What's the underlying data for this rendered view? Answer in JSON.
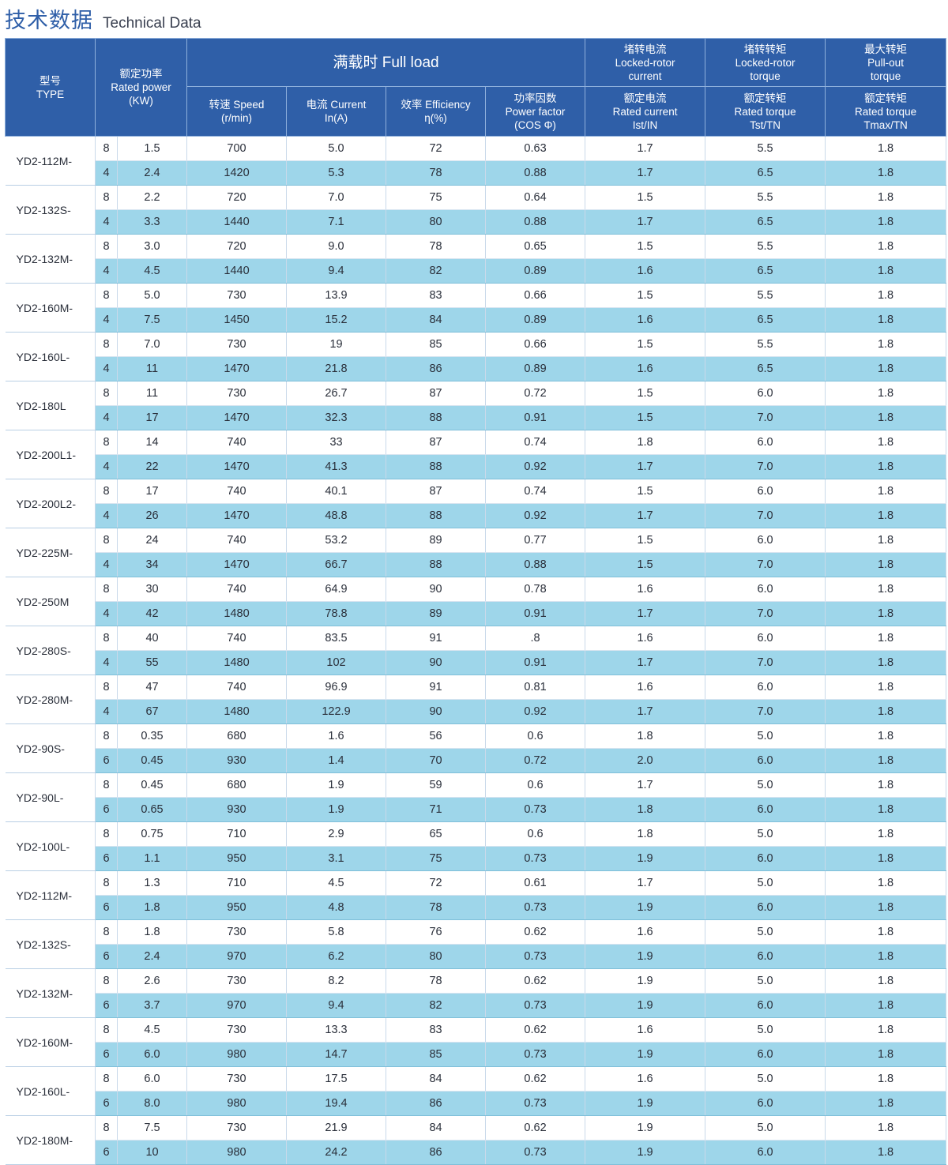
{
  "title": {
    "zh": "技术数据",
    "en": "Technical Data"
  },
  "header": {
    "type": [
      "型号",
      "TYPE"
    ],
    "rated_power": [
      "额定功率",
      "Rated power",
      "(KW)"
    ],
    "full_load": "满载时 Full load",
    "speed": [
      "转速 Speed",
      "(r/min)"
    ],
    "current": [
      "电流 Current",
      "In(A)"
    ],
    "efficiency": [
      "效率 Efficiency",
      "η(%)"
    ],
    "power_factor": [
      "功率因数",
      "Power factor",
      "(COS Φ)"
    ],
    "locked_rotor_current": [
      "堵转电流",
      "Locked-rotor",
      "current"
    ],
    "locked_rotor_torque": [
      "堵转转矩",
      "Locked-rotor",
      "torque"
    ],
    "pull_out_torque": [
      "最大转矩",
      "Pull-out",
      "torque"
    ],
    "rated_current": [
      "额定电流",
      "Rated current",
      "Ist/IN"
    ],
    "rated_torque": [
      "额定转矩",
      "Rated torque",
      "Tst/TN"
    ],
    "rated_torque_max": [
      "额定转矩",
      "Rated torque",
      "Tmax/TN"
    ]
  },
  "models": [
    {
      "type": "YD2-112M-",
      "rows": [
        [
          "8",
          "1.5",
          "700",
          "5.0",
          "72",
          "0.63",
          "1.7",
          "5.5",
          "1.8"
        ],
        [
          "4",
          "2.4",
          "1420",
          "5.3",
          "78",
          "0.88",
          "1.7",
          "6.5",
          "1.8"
        ]
      ]
    },
    {
      "type": "YD2-132S-",
      "rows": [
        [
          "8",
          "2.2",
          "720",
          "7.0",
          "75",
          "0.64",
          "1.5",
          "5.5",
          "1.8"
        ],
        [
          "4",
          "3.3",
          "1440",
          "7.1",
          "80",
          "0.88",
          "1.7",
          "6.5",
          "1.8"
        ]
      ]
    },
    {
      "type": "YD2-132M-",
      "rows": [
        [
          "8",
          "3.0",
          "720",
          "9.0",
          "78",
          "0.65",
          "1.5",
          "5.5",
          "1.8"
        ],
        [
          "4",
          "4.5",
          "1440",
          "9.4",
          "82",
          "0.89",
          "1.6",
          "6.5",
          "1.8"
        ]
      ]
    },
    {
      "type": "YD2-160M-",
      "rows": [
        [
          "8",
          "5.0",
          "730",
          "13.9",
          "83",
          "0.66",
          "1.5",
          "5.5",
          "1.8"
        ],
        [
          "4",
          "7.5",
          "1450",
          "15.2",
          "84",
          "0.89",
          "1.6",
          "6.5",
          "1.8"
        ]
      ]
    },
    {
      "type": "YD2-160L-",
      "rows": [
        [
          "8",
          "7.0",
          "730",
          "19",
          "85",
          "0.66",
          "1.5",
          "5.5",
          "1.8"
        ],
        [
          "4",
          "11",
          "1470",
          "21.8",
          "86",
          "0.89",
          "1.6",
          "6.5",
          "1.8"
        ]
      ]
    },
    {
      "type": "YD2-180L",
      "rows": [
        [
          "8",
          "11",
          "730",
          "26.7",
          "87",
          "0.72",
          "1.5",
          "6.0",
          "1.8"
        ],
        [
          "4",
          "17",
          "1470",
          "32.3",
          "88",
          "0.91",
          "1.5",
          "7.0",
          "1.8"
        ]
      ]
    },
    {
      "type": "YD2-200L1-",
      "rows": [
        [
          "8",
          "14",
          "740",
          "33",
          "87",
          "0.74",
          "1.8",
          "6.0",
          "1.8"
        ],
        [
          "4",
          "22",
          "1470",
          "41.3",
          "88",
          "0.92",
          "1.7",
          "7.0",
          "1.8"
        ]
      ]
    },
    {
      "type": "YD2-200L2-",
      "rows": [
        [
          "8",
          "17",
          "740",
          "40.1",
          "87",
          "0.74",
          "1.5",
          "6.0",
          "1.8"
        ],
        [
          "4",
          "26",
          "1470",
          "48.8",
          "88",
          "0.92",
          "1.7",
          "7.0",
          "1.8"
        ]
      ]
    },
    {
      "type": "YD2-225M-",
      "rows": [
        [
          "8",
          "24",
          "740",
          "53.2",
          "89",
          "0.77",
          "1.5",
          "6.0",
          "1.8"
        ],
        [
          "4",
          "34",
          "1470",
          "66.7",
          "88",
          "0.88",
          "1.5",
          "7.0",
          "1.8"
        ]
      ]
    },
    {
      "type": "YD2-250M",
      "rows": [
        [
          "8",
          "30",
          "740",
          "64.9",
          "90",
          "0.78",
          "1.6",
          "6.0",
          "1.8"
        ],
        [
          "4",
          "42",
          "1480",
          "78.8",
          "89",
          "0.91",
          "1.7",
          "7.0",
          "1.8"
        ]
      ]
    },
    {
      "type": "YD2-280S-",
      "rows": [
        [
          "8",
          "40",
          "740",
          "83.5",
          "91",
          ".8",
          "1.6",
          "6.0",
          "1.8"
        ],
        [
          "4",
          "55",
          "1480",
          "102",
          "90",
          "0.91",
          "1.7",
          "7.0",
          "1.8"
        ]
      ]
    },
    {
      "type": "YD2-280M-",
      "rows": [
        [
          "8",
          "47",
          "740",
          "96.9",
          "91",
          "0.81",
          "1.6",
          "6.0",
          "1.8"
        ],
        [
          "4",
          "67",
          "1480",
          "122.9",
          "90",
          "0.92",
          "1.7",
          "7.0",
          "1.8"
        ]
      ]
    },
    {
      "type": "YD2-90S-",
      "rows": [
        [
          "8",
          "0.35",
          "680",
          "1.6",
          "56",
          "0.6",
          "1.8",
          "5.0",
          "1.8"
        ],
        [
          "6",
          "0.45",
          "930",
          "1.4",
          "70",
          "0.72",
          "2.0",
          "6.0",
          "1.8"
        ]
      ]
    },
    {
      "type": "YD2-90L-",
      "rows": [
        [
          "8",
          "0.45",
          "680",
          "1.9",
          "59",
          "0.6",
          "1.7",
          "5.0",
          "1.8"
        ],
        [
          "6",
          "0.65",
          "930",
          "1.9",
          "71",
          "0.73",
          "1.8",
          "6.0",
          "1.8"
        ]
      ]
    },
    {
      "type": "YD2-100L-",
      "rows": [
        [
          "8",
          "0.75",
          "710",
          "2.9",
          "65",
          "0.6",
          "1.8",
          "5.0",
          "1.8"
        ],
        [
          "6",
          "1.1",
          "950",
          "3.1",
          "75",
          "0.73",
          "1.9",
          "6.0",
          "1.8"
        ]
      ]
    },
    {
      "type": "YD2-112M-",
      "rows": [
        [
          "8",
          "1.3",
          "710",
          "4.5",
          "72",
          "0.61",
          "1.7",
          "5.0",
          "1.8"
        ],
        [
          "6",
          "1.8",
          "950",
          "4.8",
          "78",
          "0.73",
          "1.9",
          "6.0",
          "1.8"
        ]
      ]
    },
    {
      "type": "YD2-132S-",
      "rows": [
        [
          "8",
          "1.8",
          "730",
          "5.8",
          "76",
          "0.62",
          "1.6",
          "5.0",
          "1.8"
        ],
        [
          "6",
          "2.4",
          "970",
          "6.2",
          "80",
          "0.73",
          "1.9",
          "6.0",
          "1.8"
        ]
      ]
    },
    {
      "type": "YD2-132M-",
      "rows": [
        [
          "8",
          "2.6",
          "730",
          "8.2",
          "78",
          "0.62",
          "1.9",
          "5.0",
          "1.8"
        ],
        [
          "6",
          "3.7",
          "970",
          "9.4",
          "82",
          "0.73",
          "1.9",
          "6.0",
          "1.8"
        ]
      ]
    },
    {
      "type": "YD2-160M-",
      "rows": [
        [
          "8",
          "4.5",
          "730",
          "13.3",
          "83",
          "0.62",
          "1.6",
          "5.0",
          "1.8"
        ],
        [
          "6",
          "6.0",
          "980",
          "14.7",
          "85",
          "0.73",
          "1.9",
          "6.0",
          "1.8"
        ]
      ]
    },
    {
      "type": "YD2-160L-",
      "rows": [
        [
          "8",
          "6.0",
          "730",
          "17.5",
          "84",
          "0.62",
          "1.6",
          "5.0",
          "1.8"
        ],
        [
          "6",
          "8.0",
          "980",
          "19.4",
          "86",
          "0.73",
          "1.9",
          "6.0",
          "1.8"
        ]
      ]
    },
    {
      "type": "YD2-180M-",
      "rows": [
        [
          "8",
          "7.5",
          "730",
          "21.9",
          "84",
          "0.62",
          "1.9",
          "5.0",
          "1.8"
        ],
        [
          "6",
          "10",
          "980",
          "24.2",
          "86",
          "0.73",
          "1.9",
          "6.0",
          "1.8"
        ]
      ]
    }
  ]
}
